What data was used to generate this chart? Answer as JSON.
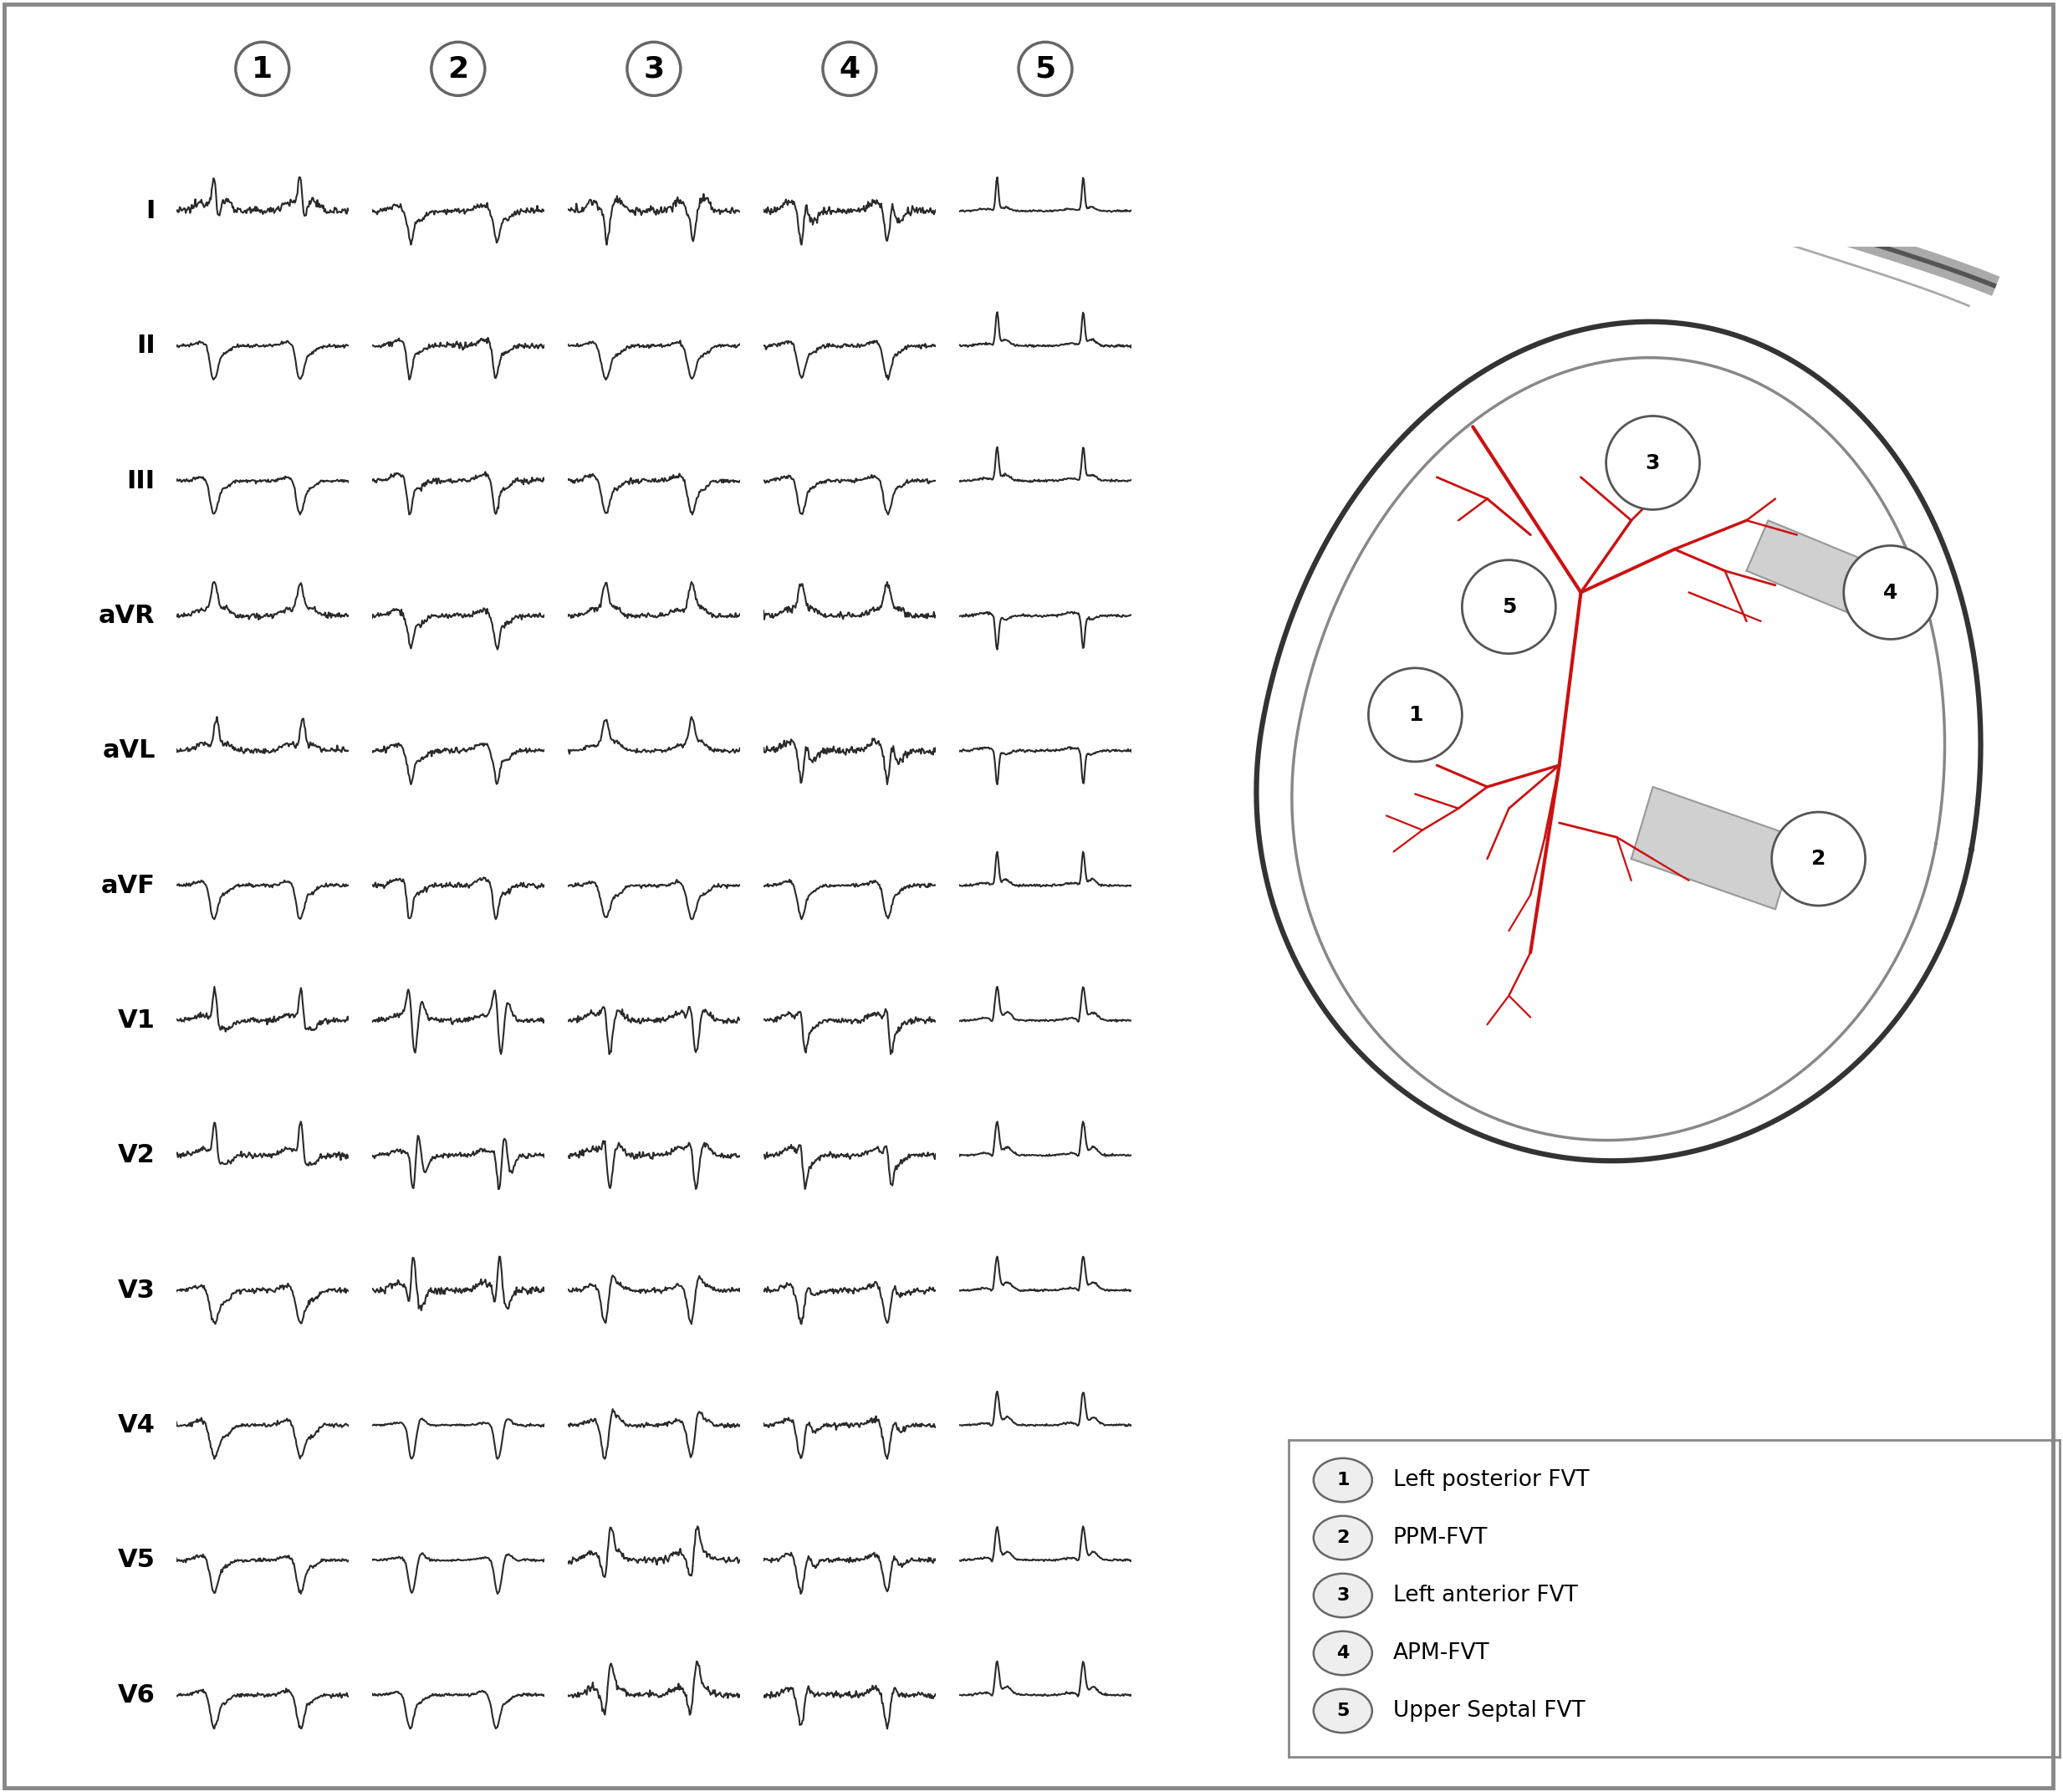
{
  "leads": [
    "I",
    "II",
    "III",
    "aVR",
    "aVL",
    "aVF",
    "V1",
    "V2",
    "V3",
    "V4",
    "V5",
    "V6"
  ],
  "types": [
    "1",
    "2",
    "3",
    "4",
    "5"
  ],
  "legend_items": [
    [
      "1",
      "Left posterior FVT"
    ],
    [
      "2",
      "PPM-FVT"
    ],
    [
      "3",
      "Left anterior FVT"
    ],
    [
      "4",
      "APM-FVT"
    ],
    [
      "5",
      "Upper Septal FVT"
    ]
  ],
  "bg_color": "#ffffff",
  "ecg_color": "#2a2a2a",
  "red_color": "#cc1111",
  "fig_border_color": "#999999"
}
